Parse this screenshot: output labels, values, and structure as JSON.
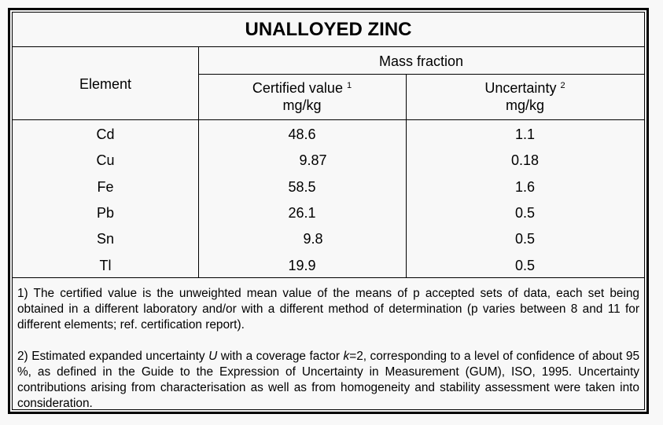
{
  "title": "UNALLOYED ZINC",
  "header": {
    "element": "Element",
    "mass_fraction": "Mass fraction",
    "certified": "Certified value",
    "certified_sup": "1",
    "uncertainty": "Uncertainty",
    "uncertainty_sup": "2",
    "unit": "mg/kg"
  },
  "rows": [
    {
      "element": "Cd",
      "value": "48.6",
      "uncertainty": "1.1"
    },
    {
      "element": "Cu",
      "value": "9.87",
      "uncertainty": "0.18"
    },
    {
      "element": "Fe",
      "value": "58.5",
      "uncertainty": "1.6"
    },
    {
      "element": "Pb",
      "value": "26.1",
      "uncertainty": "0.5"
    },
    {
      "element": "Sn",
      "value": "9.8",
      "uncertainty": "0.5"
    },
    {
      "element": "Tl",
      "value": "19.9",
      "uncertainty": "0.5"
    }
  ],
  "notes": {
    "n1": "1) The certified value is the unweighted mean value of the means of p accepted sets of data, each set being obtained in a different laboratory and/or with a different method of determination (p varies between 8 and 11 for different elements; ref. certification report).",
    "n2_a": "2) Estimated expanded uncertainty ",
    "n2_U": "U",
    "n2_b": " with a coverage factor ",
    "n2_k": "k",
    "n2_c": "=2, corresponding to a level of confidence of about 95 %, as defined in the Guide to the Expression of Uncertainty in Measurement (GUM), ISO, 1995. Uncertainty contributions arising from characterisation as well as from homogeneity and stability assessment were taken into consideration."
  }
}
